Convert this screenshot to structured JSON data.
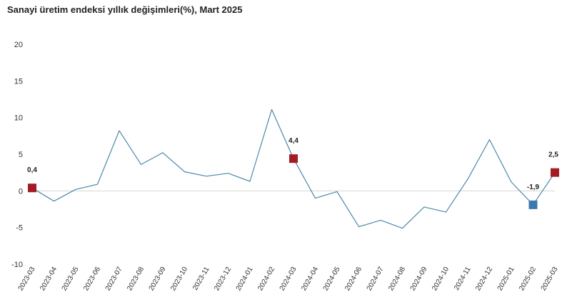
{
  "chart_data": {
    "type": "line",
    "title": "Sanayi üretim endeksi yıllık değişimleri(%), Mart 2025",
    "ylim": [
      -10,
      20
    ],
    "yticks": [
      -10,
      -5,
      0,
      5,
      10,
      15,
      20
    ],
    "grid": false,
    "legend": "none",
    "line_color": "#4a89a8",
    "categories": [
      "2023-03",
      "2023-04",
      "2023-05",
      "2023-06",
      "2023-07",
      "2023-08",
      "2023-09",
      "2023-10",
      "2023-11",
      "2023-12",
      "2024-01",
      "2024-02",
      "2024-03",
      "2024-04",
      "2024-05",
      "2024-06",
      "2024-07",
      "2024-08",
      "2024-09",
      "2024-10",
      "2024-11",
      "2024-12",
      "2025-01",
      "2025-02",
      "2025-03"
    ],
    "values": [
      0.4,
      -1.4,
      0.2,
      0.9,
      8.2,
      3.6,
      5.2,
      2.6,
      2.0,
      2.4,
      1.3,
      11.1,
      4.4,
      -1.0,
      -0.1,
      -4.9,
      -4.0,
      -5.1,
      -2.2,
      -2.9,
      1.6,
      7.0,
      1.2,
      -1.9,
      2.5
    ],
    "annotations": [
      {
        "category": "2023-03",
        "value": 0.4,
        "label": "0,4",
        "color": "#a31c24"
      },
      {
        "category": "2024-03",
        "value": 4.4,
        "label": "4,4",
        "color": "#a31c24"
      },
      {
        "category": "2025-02",
        "value": -1.9,
        "label": "-1,9",
        "color": "#3a78b0"
      },
      {
        "category": "2025-03",
        "value": 2.5,
        "label": "2,5",
        "color": "#a31c24"
      }
    ]
  }
}
